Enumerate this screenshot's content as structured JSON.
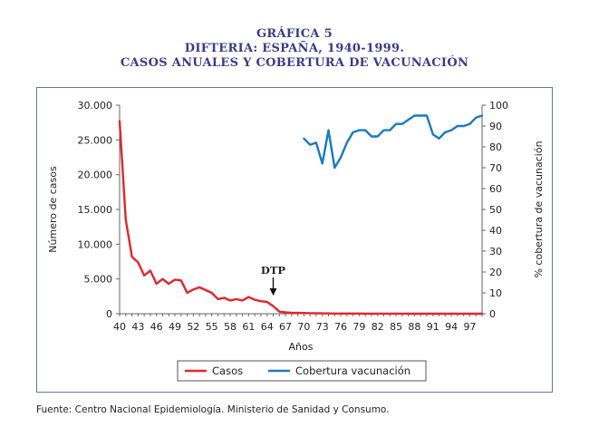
{
  "titles": {
    "line1": "GRÁFICA 5",
    "line2": "DIFTERIA: ESPAÑA, 1940-1999.",
    "line3": "CASOS ANUALES Y COBERTURA DE VACUNACIÓN"
  },
  "source": "Fuente:  Centro Nacional Epidemiología. Ministerio de Sanidad y Consumo.",
  "chart_data": {
    "type": "line",
    "xlabel": "Años",
    "ylabel": "Número de casos",
    "y2label": "% cobertura de vacunación",
    "xlim": [
      1940,
      1999
    ],
    "ylim": [
      0,
      30000
    ],
    "y2lim": [
      0,
      100
    ],
    "x_tick_values": [
      40,
      43,
      46,
      49,
      52,
      55,
      58,
      61,
      64,
      67,
      70,
      73,
      76,
      79,
      82,
      85,
      88,
      91,
      94,
      97
    ],
    "x_tick_labels": [
      "40",
      "43",
      "46",
      "49",
      "52",
      "55",
      "58",
      "61",
      "64",
      "67",
      "70",
      "73",
      "76",
      "79",
      "82",
      "85",
      "88",
      "91",
      "94",
      "97"
    ],
    "y_ticks": [
      "0",
      "5.000",
      "10.000",
      "15.000",
      "20.000",
      "25.000",
      "30.000"
    ],
    "y2_ticks": [
      "0",
      "10",
      "20",
      "30",
      "40",
      "50",
      "60",
      "70",
      "80",
      "90",
      "100"
    ],
    "annotation": {
      "text": "DTP",
      "x": 1965
    },
    "legend_position": "bottom",
    "series": [
      {
        "name": "Casos",
        "color": "#e2262b",
        "axis": "left",
        "x": [
          1940,
          1941,
          1942,
          1943,
          1944,
          1945,
          1946,
          1947,
          1948,
          1949,
          1950,
          1951,
          1952,
          1953,
          1954,
          1955,
          1956,
          1957,
          1958,
          1959,
          1960,
          1961,
          1962,
          1963,
          1964,
          1965,
          1966,
          1967,
          1968,
          1969,
          1970,
          1971,
          1972,
          1973,
          1974,
          1975,
          1976,
          1977,
          1978,
          1979,
          1980,
          1981,
          1982,
          1983,
          1984,
          1985,
          1986,
          1987,
          1988,
          1989,
          1990,
          1991,
          1992,
          1993,
          1994,
          1995,
          1996,
          1997,
          1998,
          1999
        ],
        "values": [
          27700,
          13500,
          8200,
          7400,
          5500,
          6200,
          4300,
          5000,
          4300,
          4900,
          4800,
          3000,
          3500,
          3800,
          3400,
          3000,
          2100,
          2300,
          1900,
          2100,
          1900,
          2400,
          2000,
          1800,
          1700,
          1100,
          300,
          200,
          150,
          120,
          100,
          80,
          60,
          50,
          40,
          30,
          30,
          20,
          20,
          20,
          15,
          15,
          10,
          10,
          10,
          10,
          10,
          5,
          5,
          5,
          5,
          5,
          5,
          5,
          5,
          5,
          5,
          5,
          5,
          5
        ]
      },
      {
        "name": "Cobertura vacunación",
        "color": "#1a79c3",
        "axis": "right",
        "x": [
          1970,
          1971,
          1972,
          1973,
          1974,
          1975,
          1976,
          1977,
          1978,
          1979,
          1980,
          1981,
          1982,
          1983,
          1984,
          1985,
          1986,
          1987,
          1988,
          1989,
          1990,
          1991,
          1992,
          1993,
          1994,
          1995,
          1996,
          1997,
          1998,
          1999
        ],
        "values": [
          84,
          81,
          82,
          72,
          88,
          70,
          75,
          82,
          87,
          88,
          88,
          85,
          85,
          88,
          88,
          91,
          91,
          93,
          95,
          95,
          95,
          86,
          84,
          87,
          88,
          90,
          90,
          91,
          94,
          95
        ]
      }
    ]
  }
}
